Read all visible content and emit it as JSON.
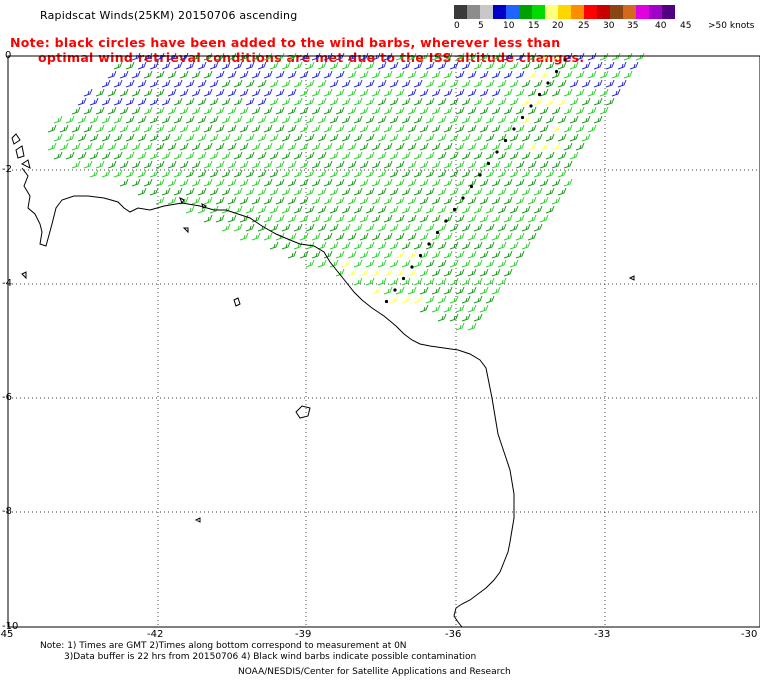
{
  "title": "Rapidscat Winds(25KM) 20150706 ascending",
  "note_line1": "Note: black circles have been added to the wind barbs, wherever less than",
  "note_line2": "optimal wind retrieval conditions are met due to the ISS altitude changes.",
  "legend": {
    "colors": [
      "#3a3a3a",
      "#8c8c8c",
      "#c8c8c8",
      "#0000c8",
      "#1e64ff",
      "#00a000",
      "#00dc00",
      "#ffff80",
      "#ffd700",
      "#ff8c00",
      "#ff0000",
      "#c80000",
      "#8b4513",
      "#d2691e",
      "#e000e0",
      "#a000c8",
      "#500080"
    ],
    "labels": [
      "0",
      "5",
      "10",
      "15",
      "20",
      "25",
      "30",
      "35",
      "40",
      "45",
      ">50 knots"
    ],
    "speed_colors": {
      "c10": "#2a2ad8",
      "c15": "#1a9a1a",
      "c20": "#30d030",
      "c25": "#ffff60",
      "bad": "#000000"
    }
  },
  "axes": {
    "lon_ticks": [
      "-45",
      "-42",
      "-39",
      "-36",
      "-33",
      "-30"
    ],
    "lat_ticks": [
      "0",
      "-2",
      "-4",
      "-6",
      "-8",
      "-10"
    ]
  },
  "footer": {
    "line1": "Note: 1) Times are GMT 2)Times along bottom correspond to measurement at 0N",
    "line2": "3)Data buffer is 22 hrs from 20150706 4) Black wind barbs indicate possible contamination",
    "line3": "NOAA/NESDIS/Center for Satellite Applications and Research"
  }
}
